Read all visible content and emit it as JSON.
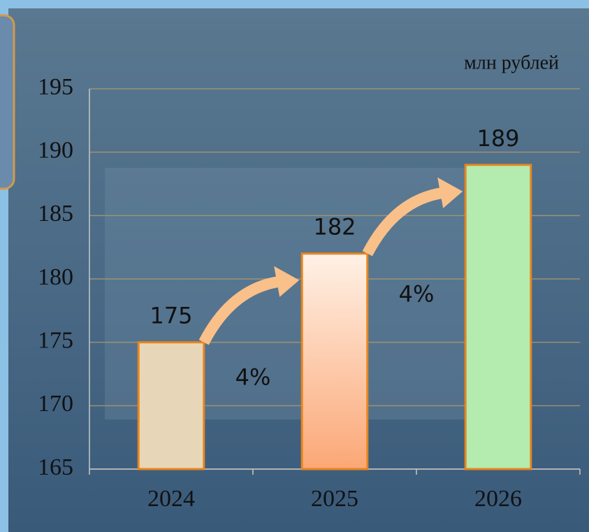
{
  "chart_data": {
    "type": "bar",
    "y_label": "млн рублей",
    "categories": [
      "2024",
      "2025",
      "2026"
    ],
    "values": [
      175,
      182,
      189
    ],
    "colors": [
      "#e8d6b8",
      "#fcc9a2",
      "#b4ecb0"
    ],
    "ylim": [
      165,
      195
    ],
    "yticks": [
      165,
      170,
      175,
      180,
      185,
      190,
      195
    ],
    "grid": true,
    "annotations": [
      "4%",
      "4%"
    ]
  }
}
